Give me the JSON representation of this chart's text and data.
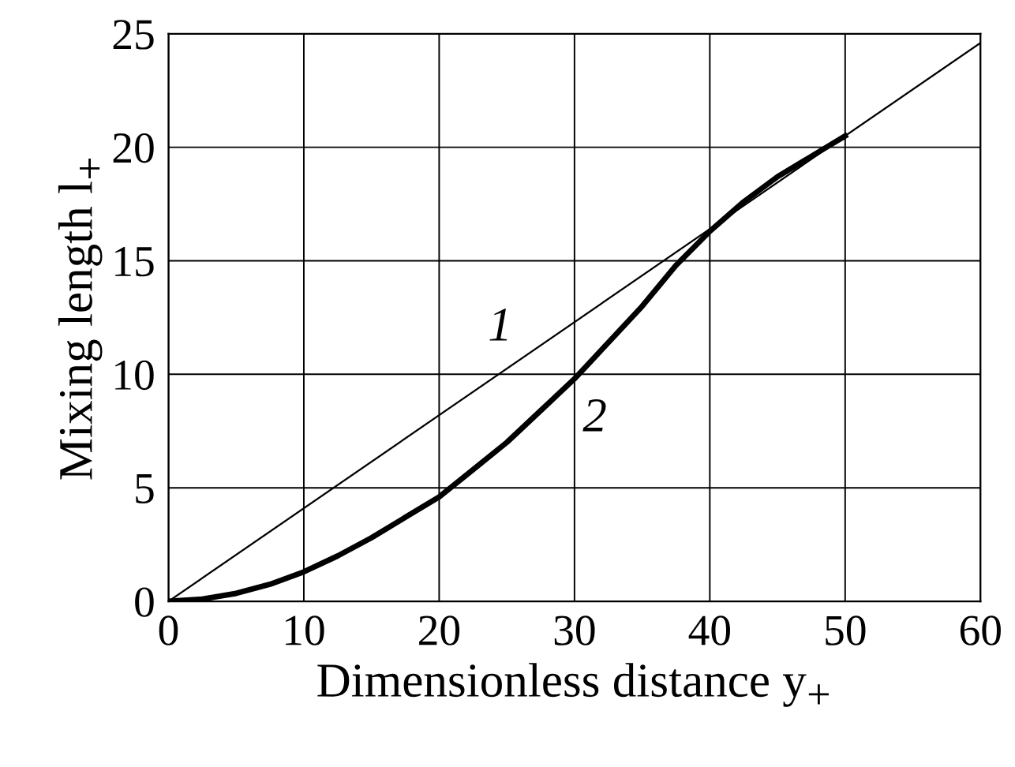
{
  "chart_data": {
    "type": "line",
    "xlabel": "Dimensionless distance y$_{+}$",
    "ylabel": "Mixing length l$_{+}$",
    "series": [
      {
        "color": "#000000",
        "x": [
          0,
          60
        ],
        "values": [
          0,
          24.6
        ]
      },
      {
        "color": "#000000",
        "x": [
          0,
          2.5,
          5,
          7.5,
          10,
          12.5,
          15,
          17.5,
          20,
          22.5,
          25,
          27.5,
          30,
          32.5,
          35,
          37.5,
          40,
          42.5,
          45,
          47.5,
          50
        ],
        "values": [
          0,
          0.1,
          0.35,
          0.75,
          1.3,
          2.0,
          2.8,
          3.7,
          4.6,
          5.8,
          7.0,
          8.4,
          9.8,
          11.4,
          13.0,
          14.8,
          16.3,
          17.6,
          18.7,
          19.6,
          20.5
        ]
      }
    ],
    "annotations": [
      {
        "text": "1",
        "x": 24.5,
        "y": 12
      },
      {
        "text": "2",
        "x": 31.5,
        "y": 8
      }
    ],
    "xlim": [
      0,
      60
    ],
    "ylim": [
      0,
      25
    ],
    "xticks": [
      0,
      10,
      20,
      30,
      40,
      50,
      60
    ],
    "yticks": [
      0,
      5,
      10,
      15,
      20,
      25
    ],
    "grid": true,
    "legend": false,
    "marker": "none",
    "line_style": "solid"
  }
}
